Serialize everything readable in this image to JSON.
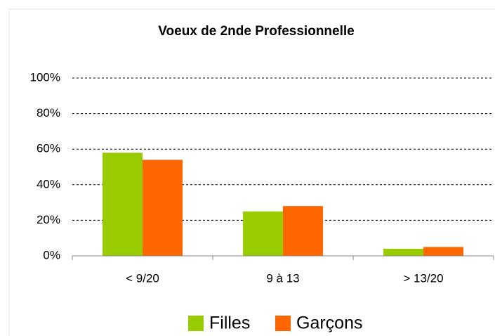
{
  "chart_data": {
    "type": "bar",
    "title": "Voeux de 2nde Professionnelle",
    "categories": [
      "< 9/20",
      "9 à 13",
      "> 13/20"
    ],
    "series": [
      {
        "name": "Filles",
        "color": "#99cc00",
        "values": [
          58,
          25,
          4
        ]
      },
      {
        "name": "Garçons",
        "color": "#ff6600",
        "values": [
          54,
          28,
          5
        ]
      }
    ],
    "ylim": [
      0,
      100
    ],
    "yticks": [
      {
        "value": 0,
        "label": "0%"
      },
      {
        "value": 20,
        "label": "20%"
      },
      {
        "value": 40,
        "label": "40%"
      },
      {
        "value": 60,
        "label": "60%"
      },
      {
        "value": 80,
        "label": "80%"
      },
      {
        "value": 100,
        "label": "100%"
      }
    ],
    "grid": true,
    "legend": "bottom"
  }
}
